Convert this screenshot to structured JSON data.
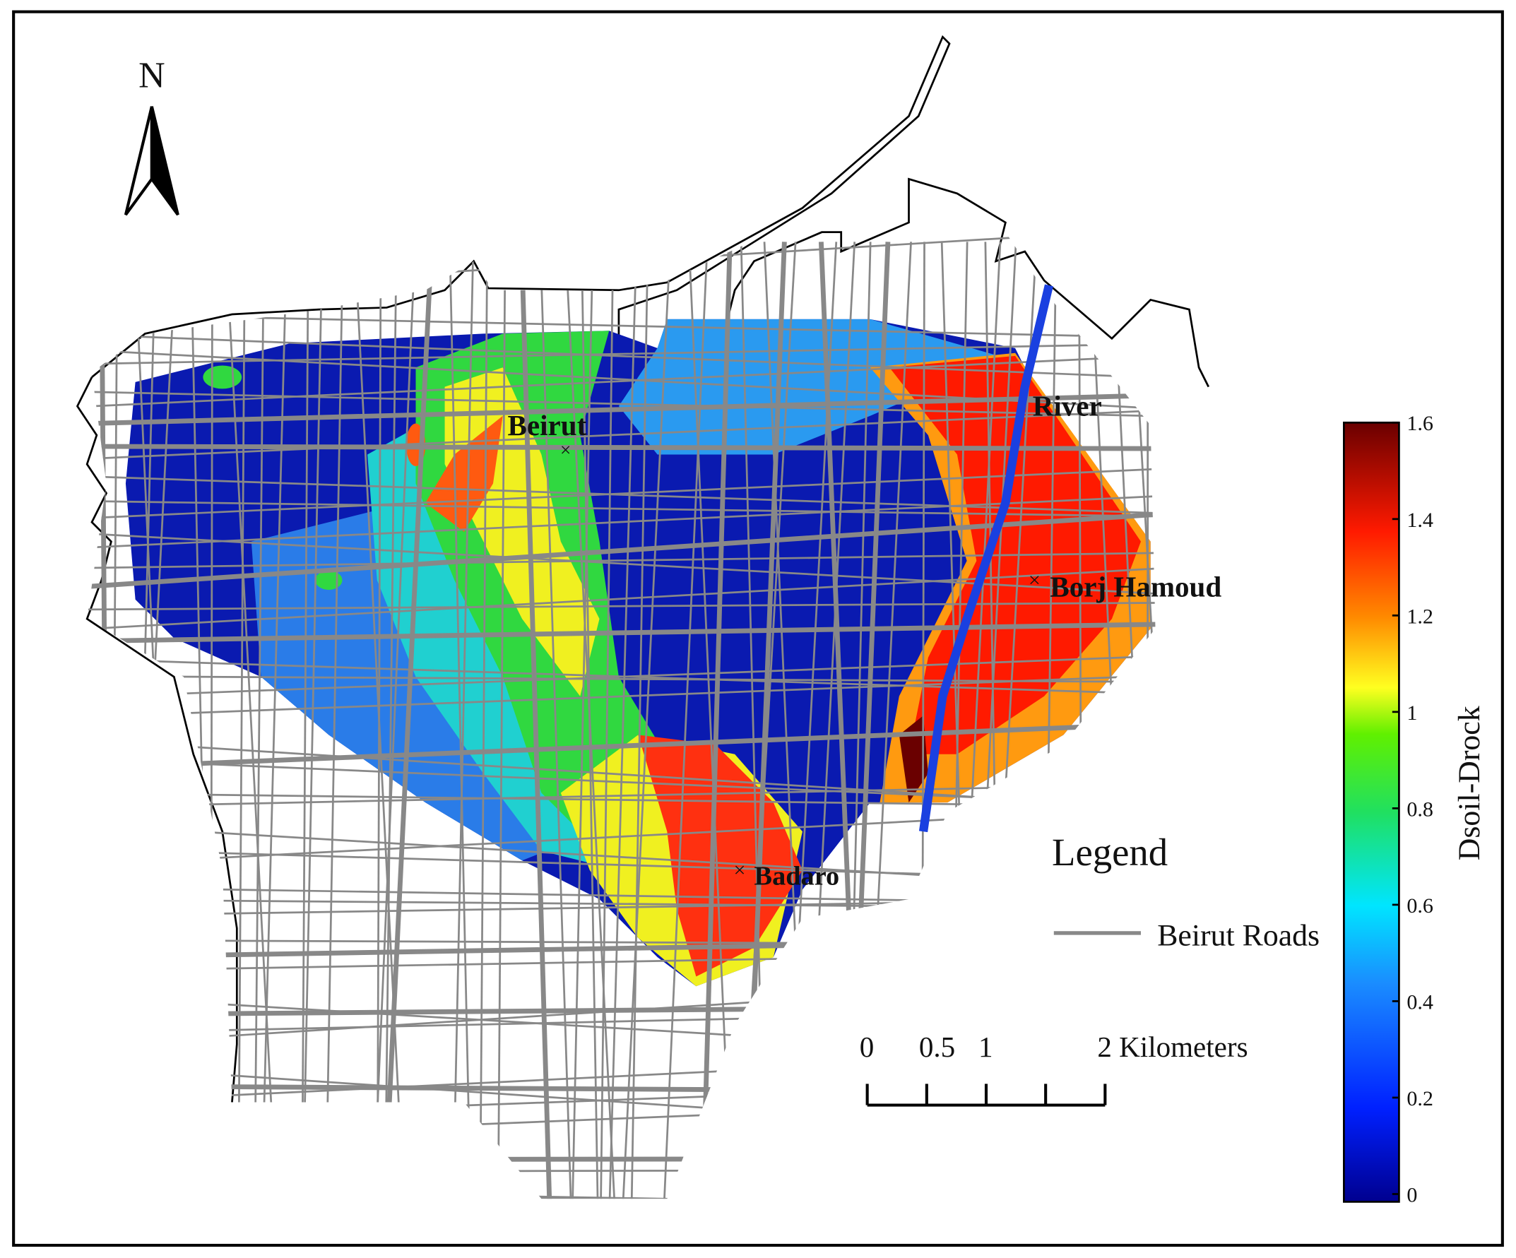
{
  "north": "N",
  "places": [
    "Beirut",
    "River",
    "Borj Hamoud",
    "Badaro"
  ],
  "legend": {
    "title": "Legend",
    "items": [
      "Beirut Roads"
    ]
  },
  "scale_bar": {
    "ticks": [
      0,
      0.5,
      1,
      {
        "value": 1.5,
        "label": null
      },
      {
        "value": 2,
        "label": "2 Kilometers"
      }
    ]
  },
  "colorbar": {
    "label": "Dsoil-Drock",
    "lim": [
      0,
      1.6
    ],
    "ticks": [
      0,
      0.2,
      0.4,
      0.6,
      0.8,
      1,
      1.2,
      1.4,
      1.6
    ]
  }
}
